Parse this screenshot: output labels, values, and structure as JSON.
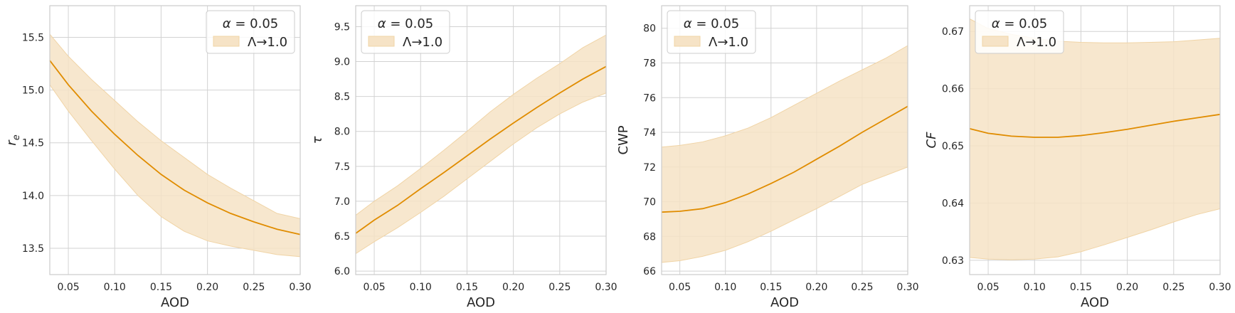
{
  "legend": {
    "title_symbol": "α",
    "title_rest": " = 0.05",
    "entry_label": "Λ→1.0"
  },
  "colors": {
    "line": "#e08c00",
    "band": "#f6e3c6",
    "band_edge": "#f0d4a6",
    "grid": "#d2d2d2",
    "spine": "#cccccc"
  },
  "chart_data": [
    {
      "type": "line",
      "xlabel": "AOD",
      "ylabel": "r_e",
      "ylabel_style": "math",
      "xlim": [
        0.03,
        0.3
      ],
      "ylim": [
        13.25,
        15.8
      ],
      "xticks": [
        0.05,
        0.1,
        0.15,
        0.2,
        0.25,
        0.3
      ],
      "xtick_labels": [
        "0.05",
        "0.10",
        "0.15",
        "0.20",
        "0.25",
        "0.30"
      ],
      "yticks": [
        13.5,
        14.0,
        14.5,
        15.0,
        15.5
      ],
      "ytick_labels": [
        "13.5",
        "14.0",
        "14.5",
        "15.0",
        "15.5"
      ],
      "legend_position": "top-right",
      "grid": true,
      "series": [
        {
          "x": [
            0.03,
            0.05,
            0.075,
            0.1,
            0.125,
            0.15,
            0.175,
            0.2,
            0.225,
            0.25,
            0.275,
            0.3
          ],
          "y": [
            15.28,
            15.05,
            14.8,
            14.58,
            14.38,
            14.2,
            14.05,
            13.93,
            13.83,
            13.75,
            13.68,
            13.63
          ],
          "lower": [
            15.05,
            14.8,
            14.52,
            14.25,
            14.0,
            13.8,
            13.66,
            13.57,
            13.52,
            13.48,
            13.44,
            13.42
          ],
          "upper": [
            15.53,
            15.32,
            15.1,
            14.9,
            14.7,
            14.52,
            14.36,
            14.2,
            14.07,
            13.95,
            13.83,
            13.78
          ]
        }
      ]
    },
    {
      "type": "line",
      "xlabel": "AOD",
      "ylabel": "τ",
      "ylabel_style": "math",
      "xlim": [
        0.03,
        0.3
      ],
      "ylim": [
        5.95,
        9.8
      ],
      "xticks": [
        0.05,
        0.1,
        0.15,
        0.2,
        0.25,
        0.3
      ],
      "xtick_labels": [
        "0.05",
        "0.10",
        "0.15",
        "0.20",
        "0.25",
        "0.30"
      ],
      "yticks": [
        6.0,
        6.5,
        7.0,
        7.5,
        8.0,
        8.5,
        9.0,
        9.5
      ],
      "ytick_labels": [
        "6.0",
        "6.5",
        "7.0",
        "7.5",
        "8.0",
        "8.5",
        "9.0",
        "9.5"
      ],
      "legend_position": "top-left",
      "grid": true,
      "series": [
        {
          "x": [
            0.03,
            0.05,
            0.075,
            0.1,
            0.125,
            0.15,
            0.175,
            0.2,
            0.225,
            0.25,
            0.275,
            0.3
          ],
          "y": [
            6.54,
            6.73,
            6.94,
            7.18,
            7.41,
            7.65,
            7.89,
            8.12,
            8.34,
            8.55,
            8.75,
            8.93
          ],
          "lower": [
            6.25,
            6.42,
            6.62,
            6.84,
            7.07,
            7.32,
            7.57,
            7.82,
            8.05,
            8.25,
            8.42,
            8.55
          ],
          "upper": [
            6.8,
            7.0,
            7.22,
            7.47,
            7.73,
            8.0,
            8.28,
            8.53,
            8.76,
            8.97,
            9.2,
            9.38
          ]
        }
      ]
    },
    {
      "type": "line",
      "xlabel": "AOD",
      "ylabel": "CWP",
      "ylabel_style": "text",
      "xlim": [
        0.03,
        0.3
      ],
      "ylim": [
        65.8,
        81.3
      ],
      "xticks": [
        0.05,
        0.1,
        0.15,
        0.2,
        0.25,
        0.3
      ],
      "xtick_labels": [
        "0.05",
        "0.10",
        "0.15",
        "0.20",
        "0.25",
        "0.30"
      ],
      "yticks": [
        66,
        68,
        70,
        72,
        74,
        76,
        78,
        80
      ],
      "ytick_labels": [
        "66",
        "68",
        "70",
        "72",
        "74",
        "76",
        "78",
        "80"
      ],
      "legend_position": "top-left",
      "grid": true,
      "series": [
        {
          "x": [
            0.03,
            0.05,
            0.075,
            0.1,
            0.125,
            0.15,
            0.175,
            0.2,
            0.225,
            0.25,
            0.275,
            0.3
          ],
          "y": [
            69.4,
            69.45,
            69.6,
            69.95,
            70.45,
            71.05,
            71.7,
            72.45,
            73.2,
            74.0,
            74.75,
            75.5
          ],
          "lower": [
            66.5,
            66.6,
            66.85,
            67.2,
            67.7,
            68.3,
            68.95,
            69.6,
            70.3,
            71.0,
            71.5,
            72.0
          ],
          "upper": [
            73.15,
            73.25,
            73.45,
            73.8,
            74.25,
            74.85,
            75.55,
            76.25,
            76.95,
            77.6,
            78.25,
            79.0
          ]
        }
      ]
    },
    {
      "type": "line",
      "xlabel": "AOD",
      "ylabel": "CF",
      "ylabel_style": "math",
      "xlim": [
        0.03,
        0.3
      ],
      "ylim": [
        0.6275,
        0.6745
      ],
      "xticks": [
        0.05,
        0.1,
        0.15,
        0.2,
        0.25,
        0.3
      ],
      "xtick_labels": [
        "0.05",
        "0.10",
        "0.15",
        "0.20",
        "0.25",
        "0.30"
      ],
      "yticks": [
        0.63,
        0.64,
        0.65,
        0.66,
        0.67
      ],
      "ytick_labels": [
        "0.63",
        "0.64",
        "0.65",
        "0.66",
        "0.67"
      ],
      "legend_position": "top-left",
      "grid": true,
      "series": [
        {
          "x": [
            0.03,
            0.05,
            0.075,
            0.1,
            0.125,
            0.15,
            0.175,
            0.2,
            0.225,
            0.25,
            0.275,
            0.3
          ],
          "y": [
            0.653,
            0.6522,
            0.6517,
            0.6515,
            0.6515,
            0.6518,
            0.6523,
            0.6529,
            0.6536,
            0.6543,
            0.6549,
            0.6555
          ],
          "lower": [
            0.6305,
            0.6302,
            0.6301,
            0.6302,
            0.6306,
            0.6315,
            0.6327,
            0.634,
            0.6353,
            0.6367,
            0.638,
            0.639
          ],
          "upper": [
            0.6722,
            0.6705,
            0.6695,
            0.6688,
            0.6683,
            0.6681,
            0.668,
            0.668,
            0.6681,
            0.6682,
            0.6685,
            0.6688
          ]
        }
      ]
    }
  ]
}
